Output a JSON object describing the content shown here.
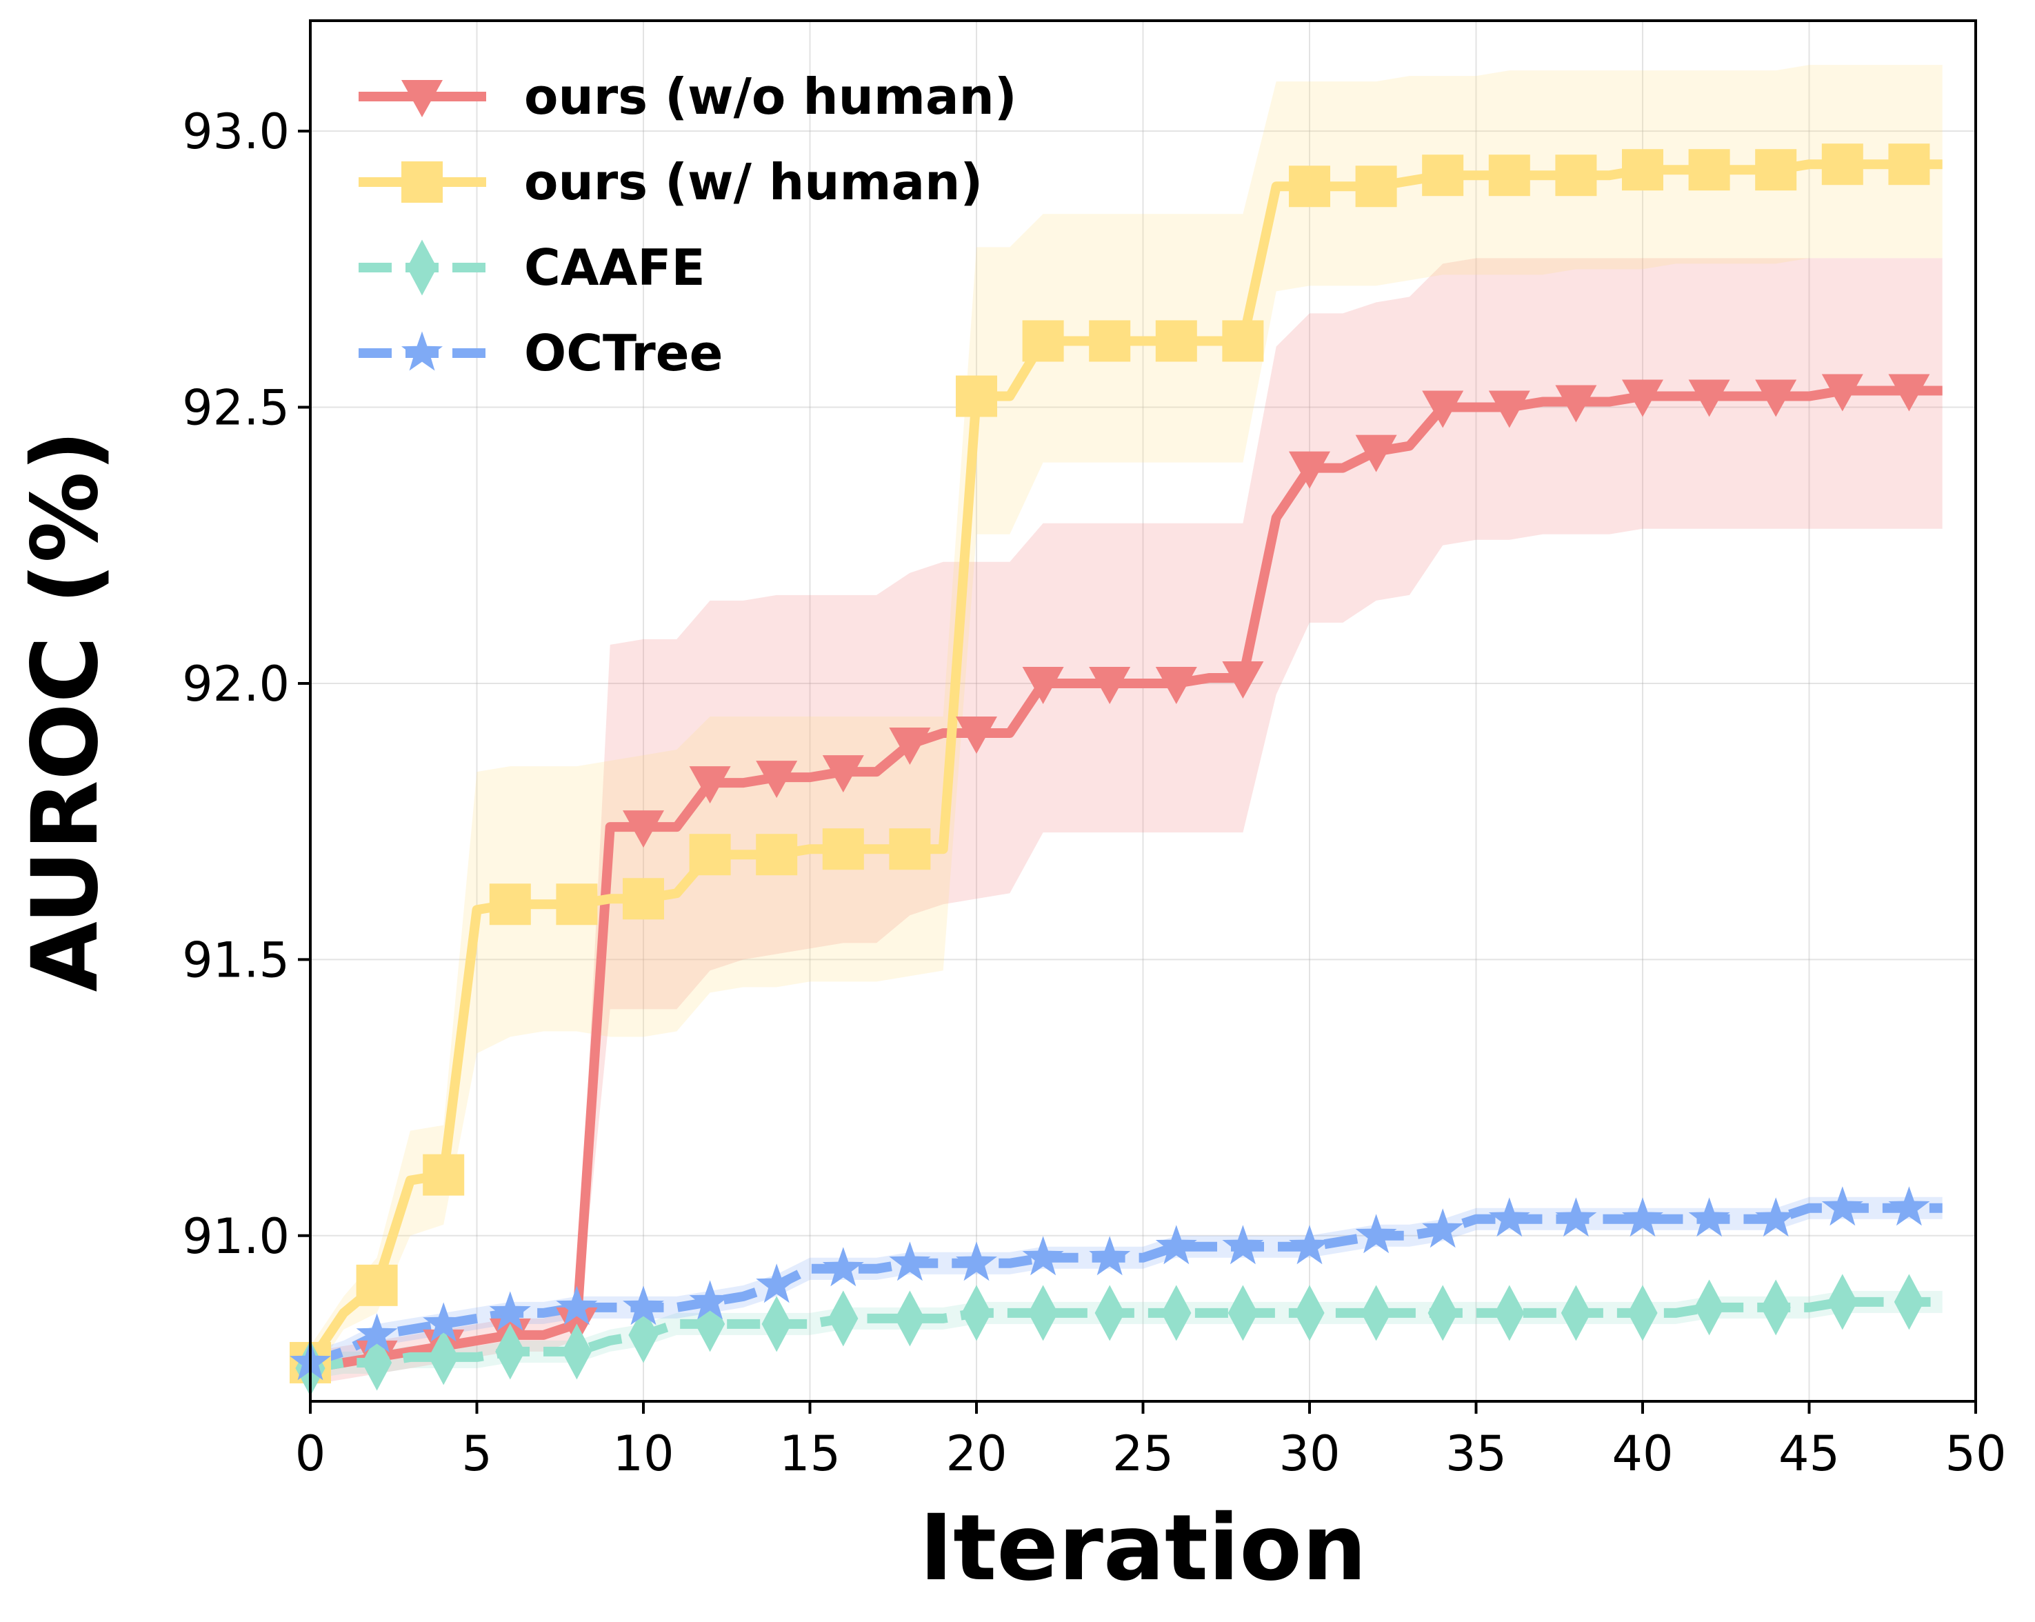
{
  "chart_data": {
    "type": "line",
    "title": "",
    "xlabel": "Iteration",
    "ylabel": "AUROC (%)",
    "xlim": [
      0,
      50
    ],
    "ylim": [
      90.7,
      93.2
    ],
    "xticks": [
      0,
      5,
      10,
      15,
      20,
      25,
      30,
      35,
      40,
      45,
      50
    ],
    "yticks": [
      91.0,
      91.5,
      92.0,
      92.5,
      93.0
    ],
    "xtick_labels": [
      "0",
      "5",
      "10",
      "15",
      "20",
      "25",
      "30",
      "35",
      "40",
      "45",
      "50"
    ],
    "ytick_labels": [
      "91.0",
      "91.5",
      "92.0",
      "92.5",
      "93.0"
    ],
    "grid": true,
    "legend_position": "top-left",
    "series": [
      {
        "name": "ours (w/o human)",
        "color": "#F08080",
        "marker": "triangle-down",
        "dash": "solid",
        "marker_every": 2,
        "x": [
          0,
          1,
          2,
          3,
          4,
          5,
          6,
          7,
          8,
          9,
          10,
          11,
          12,
          13,
          14,
          15,
          16,
          17,
          18,
          19,
          20,
          21,
          22,
          23,
          24,
          25,
          26,
          27,
          28,
          29,
          30,
          31,
          32,
          33,
          34,
          35,
          36,
          37,
          38,
          39,
          40,
          41,
          42,
          43,
          44,
          45,
          46,
          47,
          48,
          49
        ],
        "y": [
          90.76,
          90.77,
          90.78,
          90.79,
          90.8,
          90.81,
          90.82,
          90.82,
          90.84,
          91.74,
          91.74,
          91.74,
          91.82,
          91.82,
          91.83,
          91.83,
          91.84,
          91.84,
          91.89,
          91.91,
          91.91,
          91.91,
          92.0,
          92.0,
          92.0,
          92.0,
          92.0,
          92.01,
          92.01,
          92.3,
          92.39,
          92.39,
          92.42,
          92.43,
          92.5,
          92.5,
          92.5,
          92.51,
          92.51,
          92.51,
          92.52,
          92.52,
          92.52,
          92.52,
          92.52,
          92.52,
          92.53,
          92.53,
          92.53,
          92.53
        ],
        "lower": [
          90.73,
          90.74,
          90.75,
          90.76,
          90.77,
          90.78,
          90.79,
          90.79,
          90.81,
          91.41,
          91.41,
          91.41,
          91.48,
          91.5,
          91.51,
          91.52,
          91.53,
          91.53,
          91.58,
          91.6,
          91.61,
          91.62,
          91.73,
          91.73,
          91.73,
          91.73,
          91.73,
          91.73,
          91.73,
          91.98,
          92.11,
          92.11,
          92.15,
          92.16,
          92.25,
          92.26,
          92.26,
          92.27,
          92.27,
          92.27,
          92.28,
          92.28,
          92.28,
          92.28,
          92.28,
          92.28,
          92.28,
          92.28,
          92.28,
          92.28
        ],
        "upper": [
          90.79,
          90.8,
          90.81,
          90.82,
          90.83,
          90.84,
          90.85,
          90.85,
          90.87,
          92.07,
          92.08,
          92.08,
          92.15,
          92.15,
          92.16,
          92.16,
          92.16,
          92.16,
          92.2,
          92.22,
          92.22,
          92.22,
          92.29,
          92.29,
          92.29,
          92.29,
          92.29,
          92.29,
          92.29,
          92.61,
          92.67,
          92.67,
          92.69,
          92.7,
          92.76,
          92.77,
          92.77,
          92.77,
          92.77,
          92.77,
          92.77,
          92.77,
          92.77,
          92.77,
          92.77,
          92.77,
          92.77,
          92.77,
          92.77,
          92.77
        ]
      },
      {
        "name": "ours (w/ human)",
        "color": "#FFE082",
        "marker": "square",
        "dash": "solid",
        "marker_every": 2,
        "x": [
          0,
          1,
          2,
          3,
          4,
          5,
          6,
          7,
          8,
          9,
          10,
          11,
          12,
          13,
          14,
          15,
          16,
          17,
          18,
          19,
          20,
          21,
          22,
          23,
          24,
          25,
          26,
          27,
          28,
          29,
          30,
          31,
          32,
          33,
          34,
          35,
          36,
          37,
          38,
          39,
          40,
          41,
          42,
          43,
          44,
          45,
          46,
          47,
          48,
          49
        ],
        "y": [
          90.77,
          90.86,
          90.91,
          91.1,
          91.11,
          91.59,
          91.6,
          91.6,
          91.6,
          91.61,
          91.61,
          91.62,
          91.69,
          91.69,
          91.69,
          91.7,
          91.7,
          91.7,
          91.7,
          91.7,
          92.52,
          92.52,
          92.62,
          92.62,
          92.62,
          92.62,
          92.62,
          92.62,
          92.62,
          92.9,
          92.9,
          92.9,
          92.9,
          92.91,
          92.92,
          92.92,
          92.92,
          92.92,
          92.92,
          92.92,
          92.93,
          92.93,
          92.93,
          92.93,
          92.93,
          92.94,
          92.94,
          92.94,
          92.94,
          92.94
        ],
        "lower": [
          90.74,
          90.83,
          90.86,
          91.0,
          91.02,
          91.33,
          91.36,
          91.37,
          91.37,
          91.36,
          91.36,
          91.37,
          91.44,
          91.45,
          91.45,
          91.46,
          91.46,
          91.46,
          91.47,
          91.48,
          92.27,
          92.27,
          92.4,
          92.4,
          92.4,
          92.4,
          92.4,
          92.4,
          92.4,
          92.71,
          92.72,
          92.72,
          92.72,
          92.73,
          92.74,
          92.74,
          92.74,
          92.74,
          92.75,
          92.75,
          92.75,
          92.76,
          92.76,
          92.76,
          92.76,
          92.77,
          92.77,
          92.77,
          92.77,
          92.77
        ],
        "upper": [
          90.8,
          90.89,
          90.96,
          91.19,
          91.2,
          91.84,
          91.85,
          91.85,
          91.85,
          91.86,
          91.87,
          91.88,
          91.94,
          91.94,
          91.94,
          91.94,
          91.94,
          91.94,
          91.94,
          91.94,
          92.79,
          92.79,
          92.85,
          92.85,
          92.85,
          92.85,
          92.85,
          92.85,
          92.85,
          93.09,
          93.09,
          93.09,
          93.09,
          93.1,
          93.1,
          93.1,
          93.11,
          93.11,
          93.11,
          93.11,
          93.11,
          93.11,
          93.11,
          93.11,
          93.11,
          93.12,
          93.12,
          93.12,
          93.12,
          93.12
        ]
      },
      {
        "name": "CAAFE",
        "color": "#94E0CC",
        "marker": "thin-diamond",
        "dash": "dashed",
        "marker_every": 2,
        "x": [
          0,
          1,
          2,
          3,
          4,
          5,
          6,
          7,
          8,
          9,
          10,
          11,
          12,
          13,
          14,
          15,
          16,
          17,
          18,
          19,
          20,
          21,
          22,
          23,
          24,
          25,
          26,
          27,
          28,
          29,
          30,
          31,
          32,
          33,
          34,
          35,
          36,
          37,
          38,
          39,
          40,
          41,
          42,
          43,
          44,
          45,
          46,
          47,
          48,
          49
        ],
        "y": [
          90.76,
          90.77,
          90.77,
          90.78,
          90.78,
          90.78,
          90.79,
          90.79,
          90.79,
          90.81,
          90.82,
          90.84,
          90.84,
          90.84,
          90.84,
          90.84,
          90.85,
          90.85,
          90.85,
          90.85,
          90.86,
          90.86,
          90.86,
          90.86,
          90.86,
          90.86,
          90.86,
          90.86,
          90.86,
          90.86,
          90.86,
          90.86,
          90.86,
          90.86,
          90.86,
          90.86,
          90.86,
          90.86,
          90.86,
          90.86,
          90.86,
          90.86,
          90.87,
          90.87,
          90.87,
          90.87,
          90.88,
          90.88,
          90.88,
          90.88
        ],
        "lower": [
          90.74,
          90.75,
          90.75,
          90.76,
          90.76,
          90.76,
          90.77,
          90.77,
          90.77,
          90.79,
          90.8,
          90.82,
          90.82,
          90.82,
          90.82,
          90.82,
          90.83,
          90.83,
          90.83,
          90.83,
          90.84,
          90.84,
          90.84,
          90.84,
          90.84,
          90.84,
          90.84,
          90.84,
          90.84,
          90.84,
          90.84,
          90.84,
          90.84,
          90.84,
          90.84,
          90.84,
          90.84,
          90.84,
          90.84,
          90.84,
          90.84,
          90.84,
          90.85,
          90.85,
          90.85,
          90.85,
          90.86,
          90.86,
          90.86,
          90.86
        ],
        "upper": [
          90.78,
          90.79,
          90.79,
          90.8,
          90.8,
          90.8,
          90.81,
          90.81,
          90.81,
          90.83,
          90.84,
          90.86,
          90.86,
          90.86,
          90.86,
          90.86,
          90.87,
          90.87,
          90.87,
          90.87,
          90.88,
          90.88,
          90.88,
          90.88,
          90.88,
          90.88,
          90.88,
          90.88,
          90.88,
          90.88,
          90.88,
          90.88,
          90.88,
          90.88,
          90.88,
          90.88,
          90.88,
          90.88,
          90.88,
          90.88,
          90.88,
          90.88,
          90.89,
          90.89,
          90.89,
          90.89,
          90.9,
          90.9,
          90.9,
          90.9
        ]
      },
      {
        "name": "OCTree",
        "color": "#7FAAF5",
        "marker": "star",
        "dash": "dashed",
        "marker_every": 2,
        "x": [
          0,
          1,
          2,
          3,
          4,
          5,
          6,
          7,
          8,
          9,
          10,
          11,
          12,
          13,
          14,
          15,
          16,
          17,
          18,
          19,
          20,
          21,
          22,
          23,
          24,
          25,
          26,
          27,
          28,
          29,
          30,
          31,
          32,
          33,
          34,
          35,
          36,
          37,
          38,
          39,
          40,
          41,
          42,
          43,
          44,
          45,
          46,
          47,
          48,
          49
        ],
        "y": [
          90.77,
          90.79,
          90.82,
          90.83,
          90.84,
          90.85,
          90.86,
          90.86,
          90.87,
          90.87,
          90.87,
          90.87,
          90.88,
          90.89,
          90.91,
          90.94,
          90.94,
          90.94,
          90.95,
          90.95,
          90.95,
          90.95,
          90.96,
          90.96,
          90.96,
          90.96,
          90.98,
          90.98,
          90.98,
          90.98,
          90.98,
          90.99,
          91.0,
          91.0,
          91.01,
          91.03,
          91.03,
          91.03,
          91.03,
          91.03,
          91.03,
          91.03,
          91.03,
          91.03,
          91.03,
          91.05,
          91.05,
          91.05,
          91.05,
          91.05
        ],
        "lower": [
          90.75,
          90.77,
          90.8,
          90.81,
          90.82,
          90.83,
          90.84,
          90.84,
          90.85,
          90.85,
          90.85,
          90.85,
          90.86,
          90.87,
          90.89,
          90.92,
          90.92,
          90.92,
          90.93,
          90.93,
          90.93,
          90.93,
          90.94,
          90.94,
          90.94,
          90.94,
          90.96,
          90.96,
          90.96,
          90.96,
          90.96,
          90.97,
          90.98,
          90.98,
          90.99,
          91.01,
          91.01,
          91.01,
          91.01,
          91.01,
          91.01,
          91.01,
          91.01,
          91.01,
          91.01,
          91.03,
          91.03,
          91.03,
          91.03,
          91.03
        ],
        "upper": [
          90.79,
          90.81,
          90.84,
          90.85,
          90.86,
          90.87,
          90.88,
          90.88,
          90.89,
          90.89,
          90.89,
          90.89,
          90.9,
          90.91,
          90.93,
          90.96,
          90.96,
          90.96,
          90.97,
          90.97,
          90.97,
          90.97,
          90.98,
          90.98,
          90.98,
          90.98,
          91.0,
          91.0,
          91.0,
          91.0,
          91.0,
          91.01,
          91.02,
          91.02,
          91.03,
          91.05,
          91.05,
          91.05,
          91.05,
          91.05,
          91.05,
          91.05,
          91.05,
          91.05,
          91.05,
          91.07,
          91.07,
          91.07,
          91.07,
          91.07
        ]
      }
    ]
  }
}
